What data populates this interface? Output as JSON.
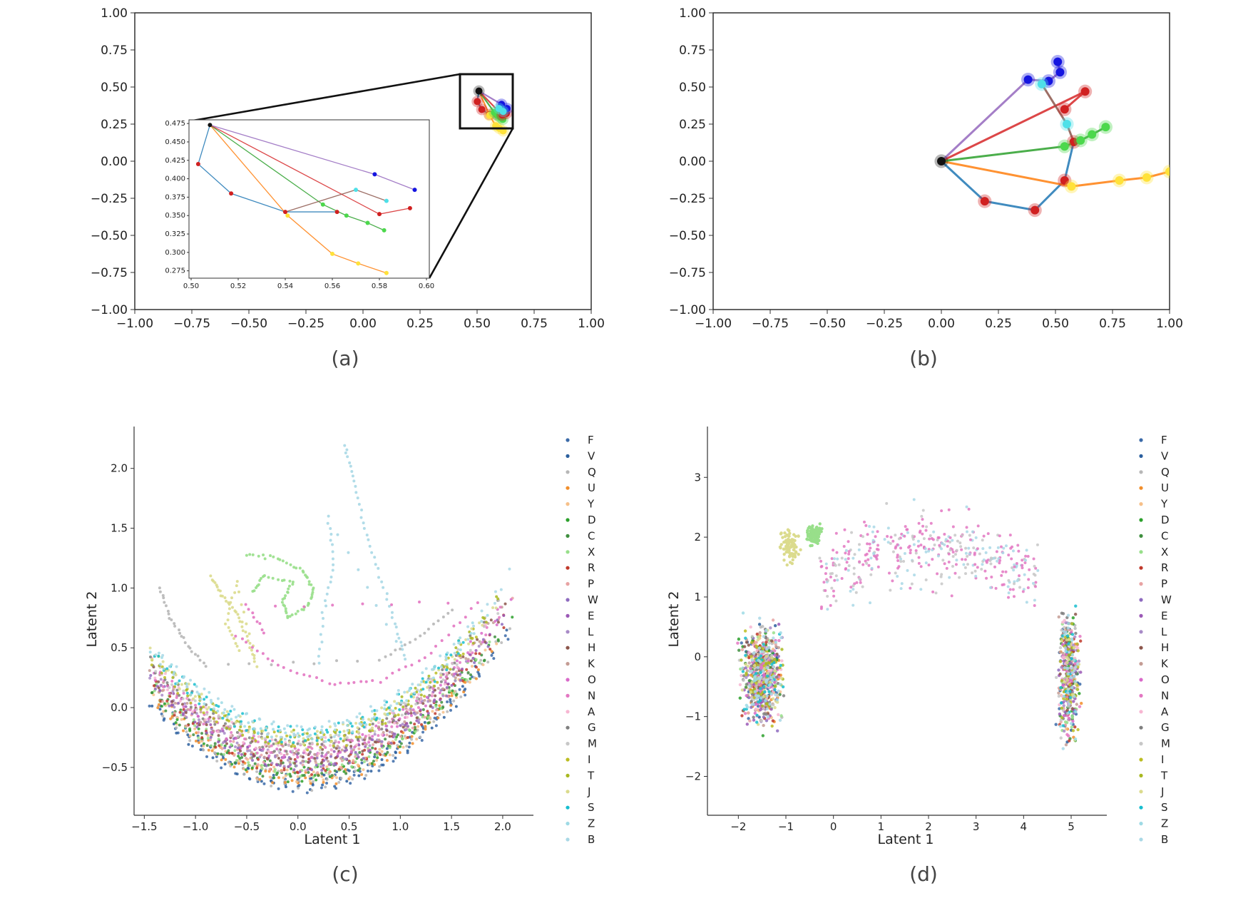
{
  "panels": [
    {
      "caption": "(a)",
      "chart_data": {
        "type": "line",
        "xlim": [
          -1.0,
          1.0
        ],
        "ylim": [
          -1.0,
          1.0
        ],
        "x_ticks": [
          "−1.00",
          "−0.75",
          "−0.50",
          "−0.25",
          "0.00",
          "0.25",
          "0.50",
          "0.75",
          "1.00"
        ],
        "y_ticks": [
          "1.00",
          "0.75",
          "0.50",
          "0.25",
          "0.00",
          "−0.25",
          "−0.50",
          "−0.75",
          "−1.00"
        ],
        "grid": false,
        "root": [
          0.508,
          0.473
        ],
        "chains": [
          {
            "color": "#1f77b4",
            "points": [
              [
                0.508,
                0.473
              ],
              [
                0.503,
                0.42
              ],
              [
                0.517,
                0.38
              ],
              [
                0.54,
                0.355
              ],
              [
                0.562,
                0.355
              ]
            ]
          },
          {
            "color": "#ff7f0e",
            "points": [
              [
                0.508,
                0.473
              ],
              [
                0.541,
                0.35
              ],
              [
                0.56,
                0.298
              ],
              [
                0.571,
                0.285
              ],
              [
                0.583,
                0.272
              ]
            ]
          },
          {
            "color": "#2ca02c",
            "points": [
              [
                0.508,
                0.473
              ],
              [
                0.556,
                0.365
              ],
              [
                0.566,
                0.35
              ],
              [
                0.575,
                0.34
              ],
              [
                0.582,
                0.33
              ]
            ]
          },
          {
            "color": "#d62728",
            "points": [
              [
                0.508,
                0.473
              ],
              [
                0.58,
                0.352
              ],
              [
                0.593,
                0.36
              ]
            ]
          },
          {
            "color": "#9467bd",
            "points": [
              [
                0.508,
                0.473
              ],
              [
                0.578,
                0.406
              ],
              [
                0.595,
                0.385
              ]
            ]
          },
          {
            "color": "#8c564b",
            "points": [
              [
                0.54,
                0.355
              ],
              [
                0.57,
                0.385
              ],
              [
                0.583,
                0.37
              ]
            ]
          }
        ],
        "inset": {
          "xlim": [
            0.5,
            0.6
          ],
          "ylim": [
            0.265,
            0.48
          ],
          "x_ticks": [
            "0.50",
            "0.52",
            "0.54",
            "0.56",
            "0.58",
            "0.60"
          ],
          "y_ticks": [
            "0.475",
            "0.450",
            "0.425",
            "0.400",
            "0.375",
            "0.350",
            "0.325",
            "0.300",
            "0.275"
          ]
        }
      }
    },
    {
      "caption": "(b)",
      "chart_data": {
        "type": "line",
        "xlim": [
          -1.0,
          1.0
        ],
        "ylim": [
          -1.0,
          1.0
        ],
        "x_ticks": [
          "−1.00",
          "−0.75",
          "−0.50",
          "−0.25",
          "0.00",
          "0.25",
          "0.50",
          "0.75",
          "1.00"
        ],
        "y_ticks": [
          "1.00",
          "0.75",
          "0.50",
          "0.25",
          "0.00",
          "−0.25",
          "−0.50",
          "−0.75",
          "−1.00"
        ],
        "grid": false,
        "root": [
          0.0,
          0.0
        ],
        "chains": [
          {
            "color": "#1f77b4",
            "points": [
              [
                0,
                0
              ],
              [
                0.19,
                -0.27
              ],
              [
                0.41,
                -0.33
              ],
              [
                0.54,
                -0.13
              ],
              [
                0.58,
                0.13
              ]
            ]
          },
          {
            "color": "#ff7f0e",
            "points": [
              [
                0,
                0
              ],
              [
                0.57,
                -0.17
              ],
              [
                0.78,
                -0.13
              ],
              [
                0.9,
                -0.11
              ],
              [
                1.0,
                -0.07
              ]
            ]
          },
          {
            "color": "#2ca02c",
            "points": [
              [
                0,
                0
              ],
              [
                0.54,
                0.1
              ],
              [
                0.61,
                0.14
              ],
              [
                0.66,
                0.18
              ],
              [
                0.72,
                0.23
              ]
            ]
          },
          {
            "color": "#d62728",
            "points": [
              [
                0,
                0
              ],
              [
                0.63,
                0.47
              ],
              [
                0.54,
                0.35
              ]
            ]
          },
          {
            "color": "#9467bd",
            "points": [
              [
                0,
                0
              ],
              [
                0.38,
                0.55
              ],
              [
                0.47,
                0.54
              ],
              [
                0.52,
                0.6
              ],
              [
                0.51,
                0.67
              ]
            ]
          },
          {
            "color": "#8c564b",
            "points": [
              [
                0.58,
                0.13
              ],
              [
                0.55,
                0.25
              ],
              [
                0.44,
                0.52
              ]
            ]
          }
        ],
        "joint_colors": {
          "blue": "#1515e0",
          "cyan": "#4ee0e8",
          "green": "#4cd84c",
          "red": "#d02020",
          "yellow": "#ffe23a",
          "black": "#111111"
        }
      }
    },
    {
      "caption": "(c)",
      "chart_data": {
        "type": "scatter",
        "xlabel": "Latent 1",
        "ylabel": "Latent 2",
        "xlim": [
          -1.6,
          2.3
        ],
        "ylim": [
          -0.9,
          2.35
        ],
        "x_ticks": [
          "−1.5",
          "−1.0",
          "−0.5",
          "0.0",
          "0.5",
          "1.0",
          "1.5",
          "2.0"
        ],
        "y_ticks": [
          "2.0",
          "1.5",
          "1.0",
          "0.5",
          "0.0",
          "−0.5"
        ],
        "legend_position": "right",
        "series": [
          {
            "name": "F",
            "color": "#3b6aa8"
          },
          {
            "name": "V",
            "color": "#2b5f9e"
          },
          {
            "name": "Q",
            "color": "#b7b7b7"
          },
          {
            "name": "U",
            "color": "#f28e2b"
          },
          {
            "name": "Y",
            "color": "#f6c089"
          },
          {
            "name": "D",
            "color": "#2ca02c"
          },
          {
            "name": "C",
            "color": "#3f8f3f"
          },
          {
            "name": "X",
            "color": "#98df8a"
          },
          {
            "name": "R",
            "color": "#c0392b"
          },
          {
            "name": "P",
            "color": "#e8a3a3"
          },
          {
            "name": "W",
            "color": "#8e6bbf"
          },
          {
            "name": "E",
            "color": "#9b59b6"
          },
          {
            "name": "L",
            "color": "#a88bc7"
          },
          {
            "name": "H",
            "color": "#8c564b"
          },
          {
            "name": "K",
            "color": "#c49c94"
          },
          {
            "name": "O",
            "color": "#d96ac9"
          },
          {
            "name": "N",
            "color": "#e377c2"
          },
          {
            "name": "A",
            "color": "#f7b6d2"
          },
          {
            "name": "G",
            "color": "#7f7f7f"
          },
          {
            "name": "M",
            "color": "#c7c7c7"
          },
          {
            "name": "I",
            "color": "#bcbd22"
          },
          {
            "name": "T",
            "color": "#a8b820"
          },
          {
            "name": "J",
            "color": "#dbdb8d"
          },
          {
            "name": "S",
            "color": "#17becf"
          },
          {
            "name": "Z",
            "color": "#9edae5"
          },
          {
            "name": "B",
            "color": "#a9d8e6"
          }
        ]
      }
    },
    {
      "caption": "(d)",
      "chart_data": {
        "type": "scatter",
        "xlabel": "Latent 1",
        "ylabel": "Latent 2",
        "xlim": [
          -2.65,
          5.75
        ],
        "ylim": [
          -2.65,
          3.85
        ],
        "x_ticks": [
          "−2",
          "−1",
          "0",
          "1",
          "2",
          "3",
          "4",
          "5"
        ],
        "y_ticks": [
          "3",
          "2",
          "1",
          "0",
          "−1",
          "−2"
        ],
        "legend_position": "right",
        "series": [
          {
            "name": "F",
            "color": "#3b6aa8"
          },
          {
            "name": "V",
            "color": "#2b5f9e"
          },
          {
            "name": "Q",
            "color": "#b7b7b7"
          },
          {
            "name": "U",
            "color": "#f28e2b"
          },
          {
            "name": "Y",
            "color": "#f6c089"
          },
          {
            "name": "D",
            "color": "#2ca02c"
          },
          {
            "name": "C",
            "color": "#3f8f3f"
          },
          {
            "name": "X",
            "color": "#98df8a"
          },
          {
            "name": "R",
            "color": "#c0392b"
          },
          {
            "name": "P",
            "color": "#e8a3a3"
          },
          {
            "name": "W",
            "color": "#8e6bbf"
          },
          {
            "name": "E",
            "color": "#9b59b6"
          },
          {
            "name": "L",
            "color": "#a88bc7"
          },
          {
            "name": "H",
            "color": "#8c564b"
          },
          {
            "name": "K",
            "color": "#c49c94"
          },
          {
            "name": "O",
            "color": "#d96ac9"
          },
          {
            "name": "N",
            "color": "#e377c2"
          },
          {
            "name": "A",
            "color": "#f7b6d2"
          },
          {
            "name": "G",
            "color": "#7f7f7f"
          },
          {
            "name": "M",
            "color": "#c7c7c7"
          },
          {
            "name": "I",
            "color": "#bcbd22"
          },
          {
            "name": "T",
            "color": "#a8b820"
          },
          {
            "name": "J",
            "color": "#dbdb8d"
          },
          {
            "name": "S",
            "color": "#17becf"
          },
          {
            "name": "Z",
            "color": "#9edae5"
          },
          {
            "name": "B",
            "color": "#a9d8e6"
          }
        ]
      }
    }
  ]
}
